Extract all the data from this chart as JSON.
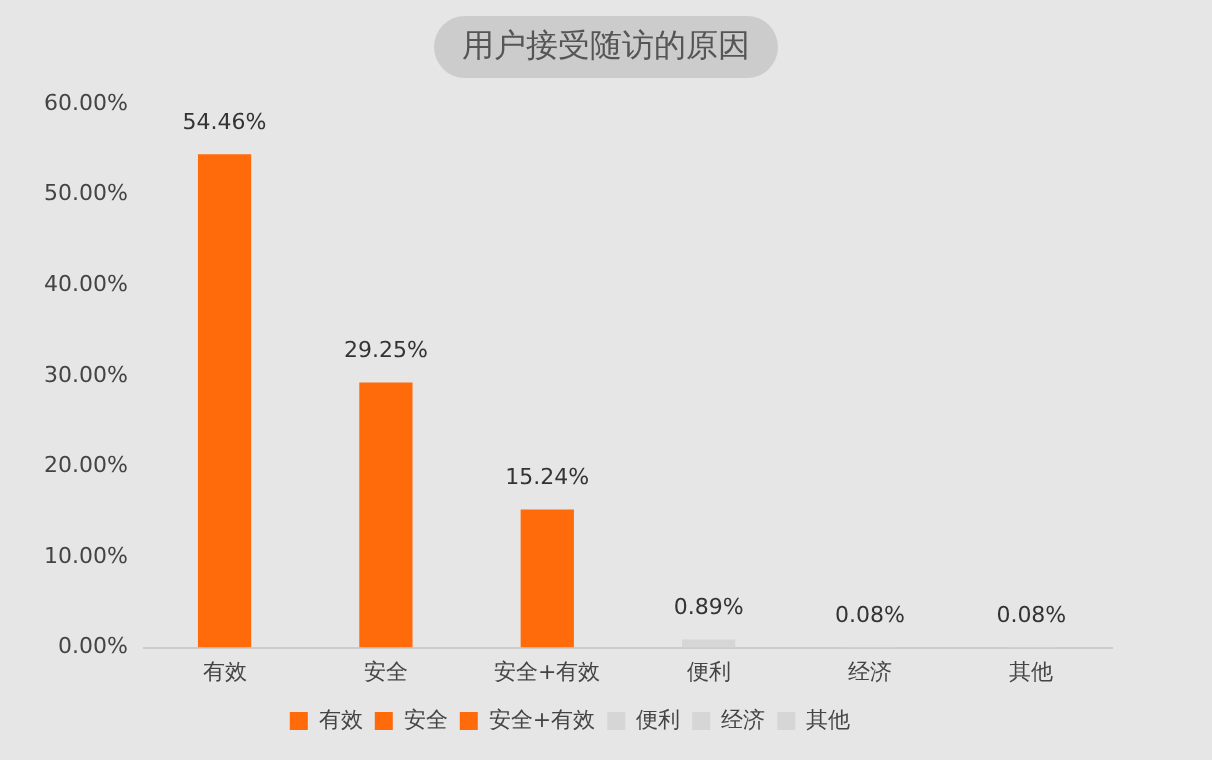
{
  "chart_data": {
    "type": "bar",
    "title": "用户接受随访的原因",
    "categories": [
      "有效",
      "安全",
      "安全+有效",
      "便利",
      "经济",
      "其他"
    ],
    "series": [
      {
        "name": "有效",
        "color": "#ff6a0a",
        "values": [
          54.46,
          null,
          null,
          null,
          null,
          null
        ],
        "value_labels": [
          "54.46%",
          null,
          null,
          null,
          null,
          null
        ]
      },
      {
        "name": "安全",
        "color": "#ff6a0a",
        "values": [
          null,
          29.25,
          null,
          null,
          null,
          null
        ],
        "value_labels": [
          null,
          "29.25%",
          null,
          null,
          null,
          null
        ]
      },
      {
        "name": "安全+有效",
        "color": "#ff6a0a",
        "values": [
          null,
          null,
          15.24,
          null,
          null,
          null
        ],
        "value_labels": [
          null,
          null,
          "15.24%",
          null,
          null,
          null
        ]
      },
      {
        "name": "便利",
        "color": "#d6d6d6",
        "values": [
          null,
          null,
          null,
          0.89,
          null,
          null
        ],
        "value_labels": [
          null,
          null,
          null,
          "0.89%",
          null,
          null
        ]
      },
      {
        "name": "经济",
        "color": "#d6d6d6",
        "values": [
          null,
          null,
          null,
          null,
          0.08,
          null
        ],
        "value_labels": [
          null,
          null,
          null,
          null,
          "0.08%",
          null
        ]
      },
      {
        "name": "其他",
        "color": "#d6d6d6",
        "values": [
          null,
          null,
          null,
          null,
          null,
          0.08
        ],
        "value_labels": [
          null,
          null,
          null,
          null,
          null,
          "0.08%"
        ]
      }
    ],
    "ylim": [
      0,
      60
    ],
    "yticks": [
      {
        "value": 0,
        "label": "0.00%"
      },
      {
        "value": 10,
        "label": "10.00%"
      },
      {
        "value": 20,
        "label": "20.00%"
      },
      {
        "value": 30,
        "label": "30.00%"
      },
      {
        "value": 40,
        "label": "40.00%"
      },
      {
        "value": 50,
        "label": "50.00%"
      },
      {
        "value": 60,
        "label": "60.00%"
      }
    ],
    "grid": false,
    "legend": "bottom"
  }
}
